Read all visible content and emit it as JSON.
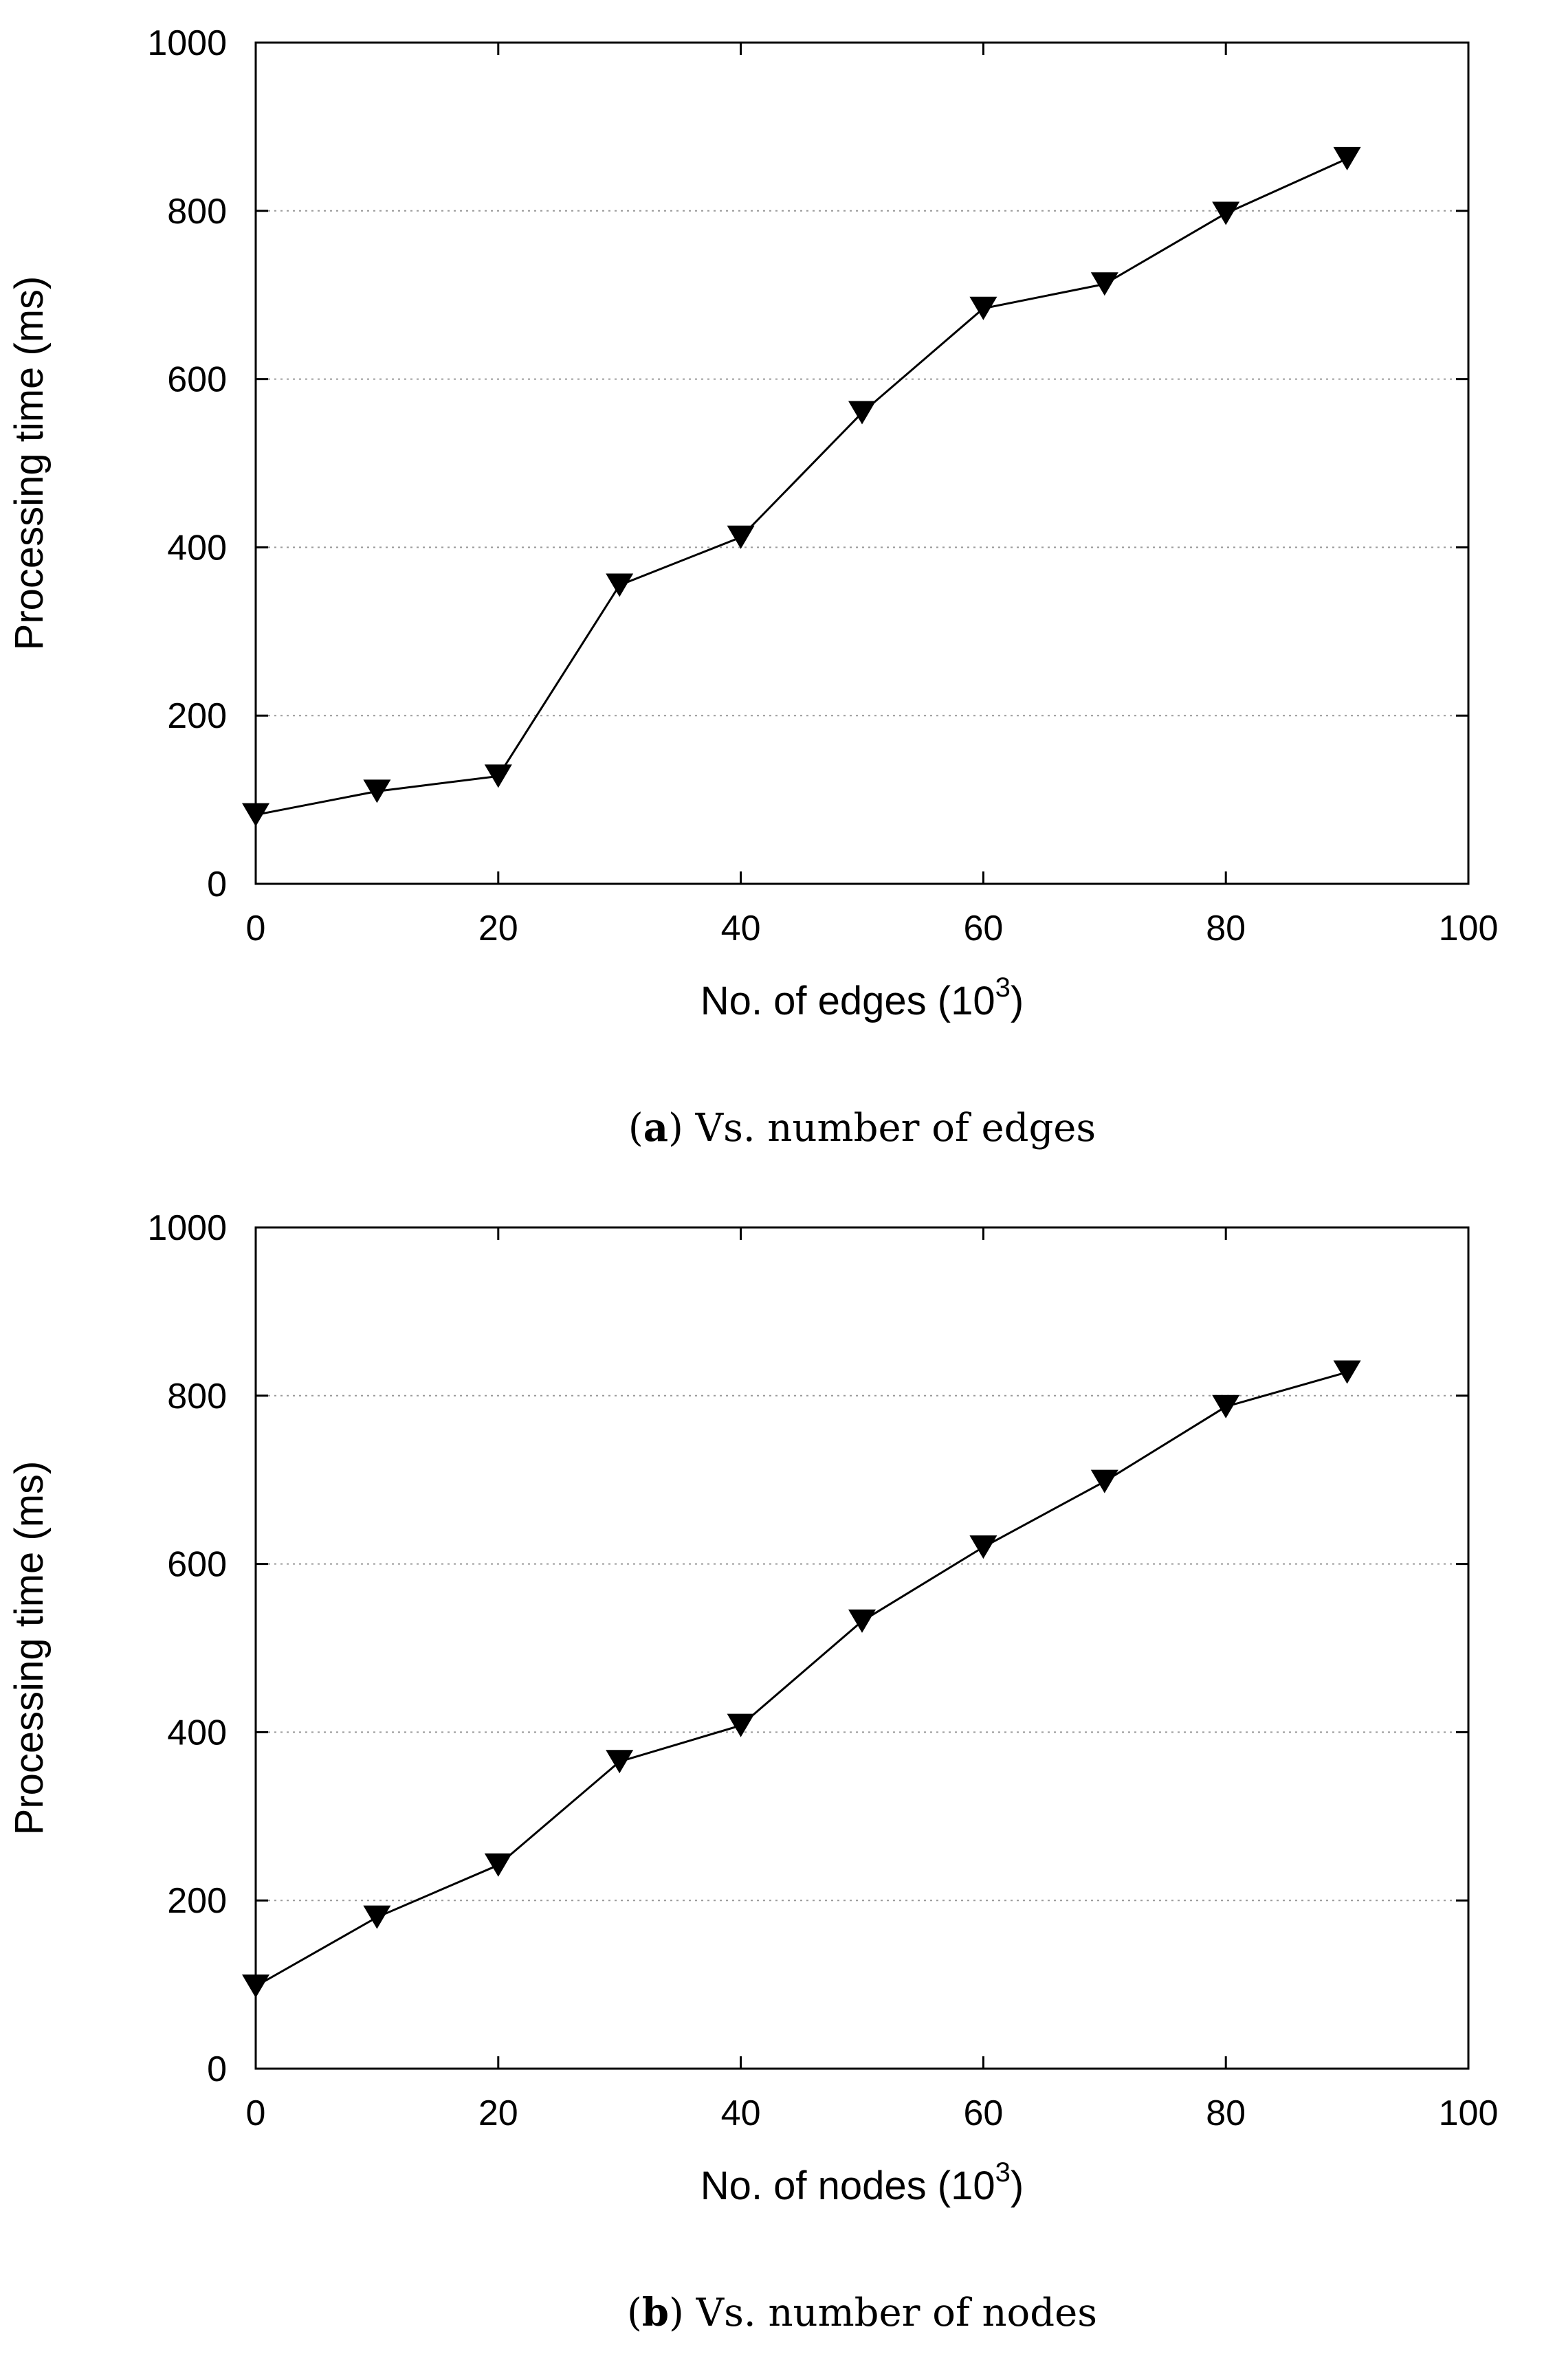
{
  "chart_data": [
    {
      "type": "line",
      "panel_label": "a",
      "caption": "Vs. number of edges",
      "xlabel": "No. of edges (10",
      "xlabel_sup": "3",
      "xlabel_close": ")",
      "ylabel": "Processing time (ms)",
      "xlim": [
        0,
        100
      ],
      "ylim": [
        0,
        1000
      ],
      "xticks": [
        "0",
        "20",
        "40",
        "60",
        "80",
        "100"
      ],
      "yticks": [
        "0",
        "200",
        "400",
        "600",
        "800",
        "1000"
      ],
      "grid": "horizontal dotted",
      "marker": "down-triangle",
      "color": "#000000",
      "series": [
        {
          "x": [
            0,
            10,
            20,
            30,
            40,
            50,
            60,
            70,
            80,
            90
          ],
          "y": [
            82,
            110,
            128,
            355,
            412,
            560,
            684,
            713,
            797,
            862
          ]
        }
      ]
    },
    {
      "type": "line",
      "panel_label": "b",
      "caption": "Vs. number of nodes",
      "xlabel": "No. of nodes (10",
      "xlabel_sup": "3",
      "xlabel_close": ")",
      "ylabel": "Processing time (ms)",
      "xlim": [
        0,
        100
      ],
      "ylim": [
        0,
        1000
      ],
      "xticks": [
        "0",
        "20",
        "40",
        "60",
        "80",
        "100"
      ],
      "yticks": [
        "0",
        "200",
        "400",
        "600",
        "800",
        "1000"
      ],
      "grid": "horizontal dotted",
      "marker": "down-triangle",
      "color": "#000000",
      "series": [
        {
          "x": [
            0,
            10,
            20,
            30,
            40,
            50,
            60,
            70,
            80,
            90
          ],
          "y": [
            98,
            180,
            242,
            365,
            408,
            532,
            620,
            698,
            787,
            828
          ]
        }
      ]
    }
  ]
}
